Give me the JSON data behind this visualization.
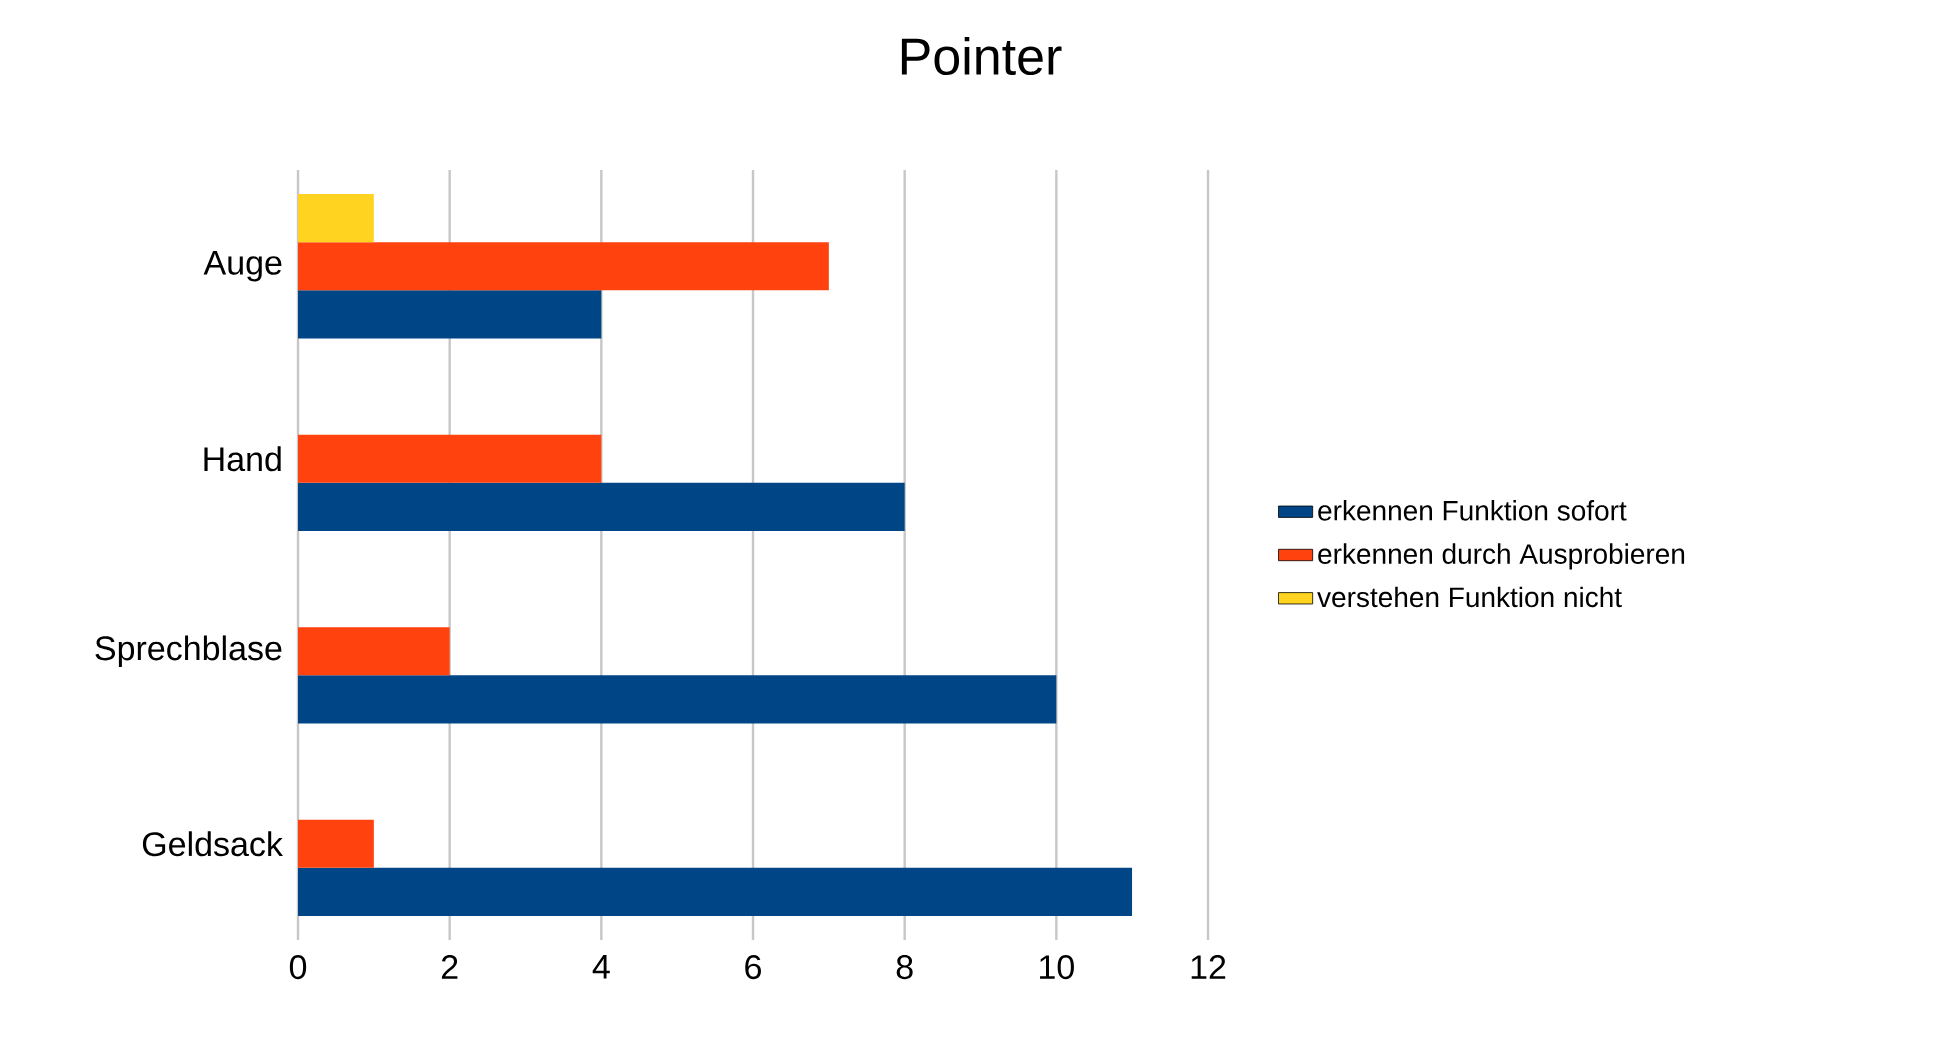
{
  "chart_data": {
    "type": "bar",
    "orientation": "horizontal",
    "title": "Pointer",
    "categories": [
      "Auge",
      "Hand",
      "Sprechblase",
      "Geldsack"
    ],
    "series": [
      {
        "name": "erkennen Funktion sofort",
        "color": "#004586",
        "values": [
          4,
          8,
          10,
          11
        ]
      },
      {
        "name": "erkennen durch Ausprobieren",
        "color": "#ff420e",
        "values": [
          7,
          4,
          2,
          1
        ]
      },
      {
        "name": "verstehen Funktion nicht",
        "color": "#ffd320",
        "values": [
          1,
          null,
          null,
          null
        ]
      }
    ],
    "xlim": [
      0,
      12
    ],
    "xticks": [
      0,
      2,
      4,
      6,
      8,
      10,
      12
    ],
    "grid": "x",
    "legend": "right"
  }
}
